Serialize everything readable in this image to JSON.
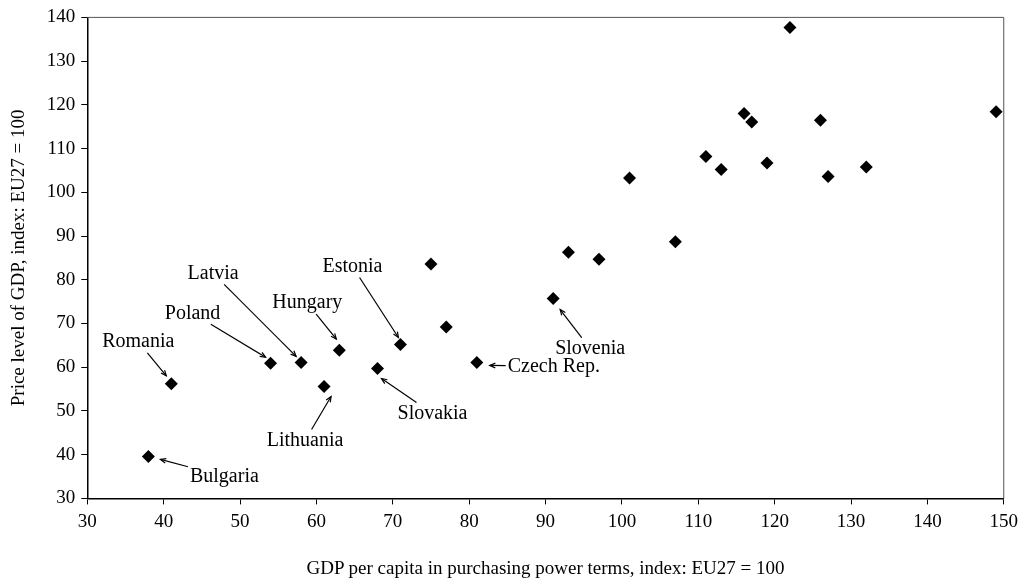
{
  "chart_data": {
    "type": "scatter",
    "xlabel": "GDP per capita in purchasing power terms, index: EU27 = 100",
    "ylabel": "Price level of GDP, index: EU27 = 100",
    "series": [
      {
        "color": "#000000",
        "x": [
          38,
          41,
          54,
          58,
          61,
          63,
          68,
          71,
          75,
          77,
          81,
          91,
          93,
          97,
          101,
          107,
          111,
          113,
          116,
          117,
          119,
          122,
          126,
          127,
          132,
          149
        ],
        "values": [
          39.6,
          56.2,
          60.9,
          61.1,
          55.6,
          63.9,
          59.7,
          65.2,
          83.6,
          69.2,
          61.1,
          75.7,
          86.3,
          84.7,
          103.3,
          88.7,
          108.2,
          105.2,
          118,
          116.1,
          106.7,
          137.7,
          116.5,
          103.6,
          105.8,
          118.4
        ]
      }
    ],
    "xlim": [
      30,
      150
    ],
    "xticks": [
      30,
      40,
      50,
      60,
      70,
      80,
      90,
      100,
      110,
      120,
      130,
      140,
      150
    ],
    "ylim": [
      30,
      140
    ],
    "yticks": [
      30,
      40,
      50,
      60,
      70,
      80,
      90,
      100,
      110,
      120,
      130,
      140
    ],
    "marker": "diamond",
    "grid": false,
    "legend": false,
    "annotations": [
      {
        "text": "Romania",
        "x": 41,
        "y": 56.2
      },
      {
        "text": "Bulgaria",
        "x": 38,
        "y": 39.6
      },
      {
        "text": "Poland",
        "x": 54,
        "y": 60.9
      },
      {
        "text": "Latvia",
        "x": 58,
        "y": 61.1
      },
      {
        "text": "Hungary",
        "x": 63,
        "y": 63.9
      },
      {
        "text": "Lithuania",
        "x": 61,
        "y": 55.6
      },
      {
        "text": "Slovakia",
        "x": 68,
        "y": 59.7
      },
      {
        "text": "Estonia",
        "x": 71,
        "y": 65.2
      },
      {
        "text": "Czech Rep.",
        "x": 81,
        "y": 61.1
      },
      {
        "text": "Slovenia",
        "x": 91,
        "y": 75.7
      }
    ]
  }
}
